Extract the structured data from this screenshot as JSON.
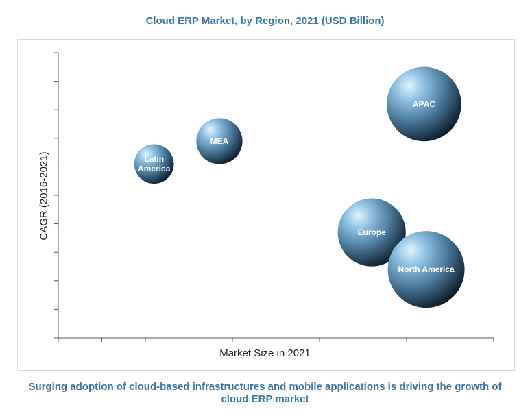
{
  "title": "Cloud ERP Market, by Region, 2021 (USD Billion)",
  "footer": "Surging adoption of cloud-based infrastructures and mobile applications is driving the growth of cloud ERP market",
  "chart_data": {
    "type": "scatter",
    "variant": "bubble",
    "title": "Cloud ERP Market, by Region, 2021 (USD Billion)",
    "xlabel": "Market Size in 2021",
    "ylabel": "CAGR (2016-2021)",
    "xlim": [
      0,
      10
    ],
    "ylim": [
      0,
      10
    ],
    "x_ticks": 10,
    "y_ticks": 10,
    "grid": false,
    "points": [
      {
        "label": "Latin America",
        "lines": [
          "Latin",
          "America"
        ],
        "x": 2.2,
        "y": 6.1,
        "size": 0.9
      },
      {
        "label": "MEA",
        "lines": [
          "MEA"
        ],
        "x": 3.7,
        "y": 6.9,
        "size": 1.05
      },
      {
        "label": "APAC",
        "lines": [
          "APAC"
        ],
        "x": 8.4,
        "y": 8.2,
        "size": 1.7
      },
      {
        "label": "Europe",
        "lines": [
          "Europe"
        ],
        "x": 7.2,
        "y": 3.7,
        "size": 1.55
      },
      {
        "label": "North America",
        "lines": [
          "North America"
        ],
        "x": 8.45,
        "y": 2.4,
        "size": 1.75
      }
    ],
    "colors": {
      "bubble_light": "#cdeeff",
      "bubble_mid": "#5a8fb5",
      "bubble_dark": "#0c1a28",
      "accent": "#3a78a5"
    }
  }
}
